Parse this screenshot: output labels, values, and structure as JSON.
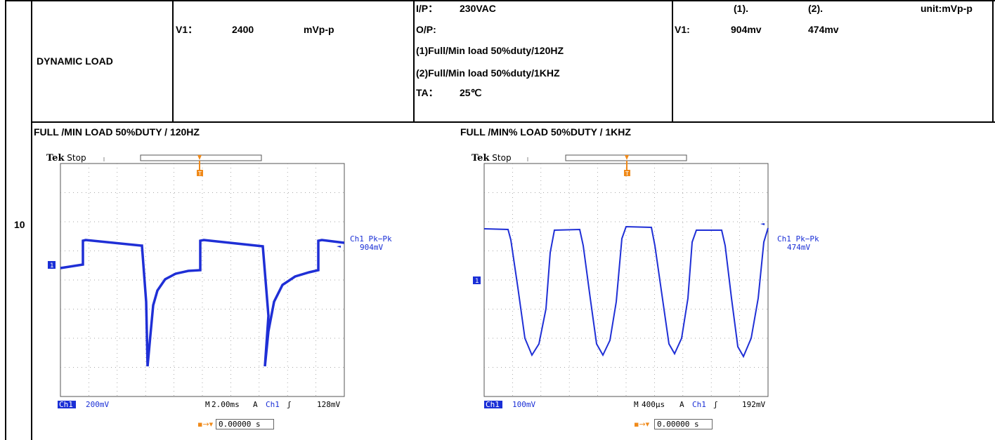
{
  "row_number": "10",
  "test_item": "DYNAMIC LOAD",
  "spec": {
    "channel": "V1：",
    "value": "2400",
    "unit": "mVp-p"
  },
  "conditions": {
    "ip_label": "I/P：",
    "ip_value": "230VAC",
    "op_label": "O/P:",
    "op_line1": "(1)Full/Min load 50%duty/120HZ",
    "op_line2": "(2)Full/Min load 50%duty/1KHZ",
    "ta_label": "TA：",
    "ta_value": "25℃"
  },
  "result": {
    "col1": "(1).",
    "col2": "(2).",
    "unit": "unit:mVp-p",
    "channel": "V1:",
    "val1": "904mv",
    "val2": "474mv"
  },
  "scopes": [
    {
      "caption": "FULL /MIN LOAD 50%DUTY / 120HZ",
      "brand": "Tek",
      "status": "Stop",
      "meas_label": "Ch1 Pk−Pk",
      "meas_value": "904mV",
      "ch_label": "Ch1",
      "volts_div": "200mV",
      "time_prefix": "M",
      "time_div": "2.00ms",
      "trig_prefix": "A",
      "trig_ch": "Ch1",
      "trig_level": "128mV",
      "offset": "0.00000 s"
    },
    {
      "caption": "FULL /MIN% LOAD 50%DUTY / 1KHZ",
      "brand": "Tek",
      "status": "Stop",
      "meas_label": "Ch1 Pk−Pk",
      "meas_value": "474mV",
      "ch_label": "Ch1",
      "volts_div": "100mV",
      "time_prefix": "M",
      "time_div": "400µs",
      "trig_prefix": "A",
      "trig_ch": "Ch1",
      "trig_level": "192mV",
      "offset": "0.00000 s"
    }
  ],
  "colors": {
    "trace": "#1f2fd6",
    "trigger": "#f08a1a",
    "grid": "#7a7a7a"
  }
}
